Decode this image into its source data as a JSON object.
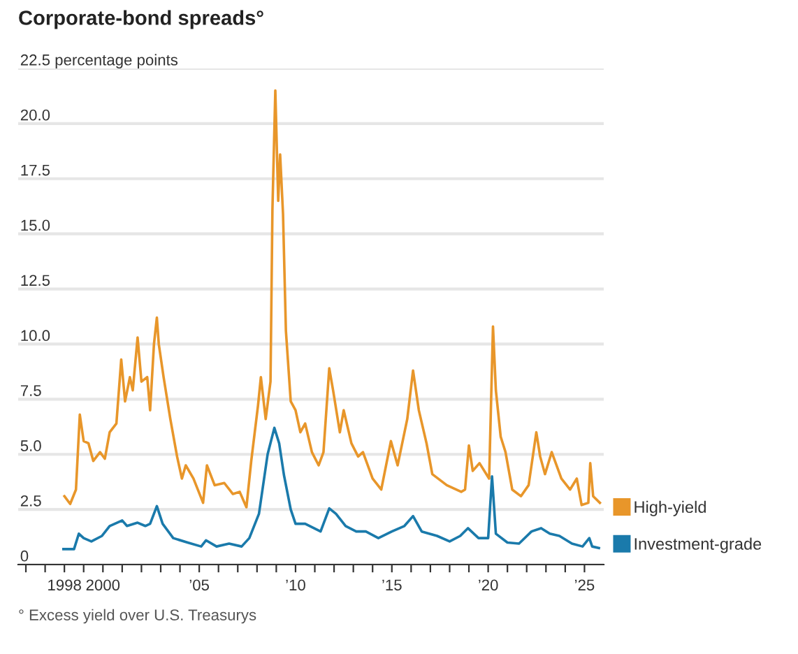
{
  "chart_data": {
    "type": "line",
    "title": "Corporate-bond spreads°",
    "annotations": [
      "° Excess yield over U.S. Treasurys"
    ],
    "series": [
      {
        "name": "High-yield",
        "color": "#e8962a",
        "x": [
          1998.0,
          1998.3,
          1998.6,
          1998.8,
          1999.0,
          1999.25,
          1999.5,
          1999.85,
          2000.1,
          2000.35,
          2000.7,
          2000.95,
          2001.15,
          2001.4,
          2001.55,
          2001.8,
          2002.0,
          2002.3,
          2002.45,
          2002.65,
          2002.8,
          2002.9,
          2003.15,
          2003.5,
          2003.85,
          2004.1,
          2004.3,
          2004.7,
          2005.2,
          2005.4,
          2005.8,
          2006.3,
          2006.75,
          2007.1,
          2007.45,
          2007.7,
          2008.05,
          2008.2,
          2008.45,
          2008.7,
          2008.8,
          2008.95,
          2009.1,
          2009.2,
          2009.35,
          2009.5,
          2009.75,
          2010.0,
          2010.25,
          2010.5,
          2010.85,
          2011.2,
          2011.45,
          2011.75,
          2011.95,
          2012.3,
          2012.5,
          2012.9,
          2013.25,
          2013.5,
          2014.0,
          2014.45,
          2014.95,
          2015.3,
          2015.8,
          2016.1,
          2016.4,
          2016.8,
          2017.1,
          2017.85,
          2018.6,
          2018.8,
          2019.0,
          2019.2,
          2019.55,
          2020.05,
          2020.25,
          2020.4,
          2020.65,
          2020.9,
          2021.25,
          2021.7,
          2022.1,
          2022.5,
          2022.7,
          2022.95,
          2023.3,
          2023.8,
          2024.25,
          2024.6,
          2024.85,
          2025.2,
          2025.3,
          2025.45,
          2025.8
        ],
        "values": [
          3.1,
          2.75,
          3.4,
          6.8,
          5.6,
          5.5,
          4.7,
          5.1,
          4.8,
          6.0,
          6.4,
          9.3,
          7.4,
          8.5,
          7.9,
          10.3,
          8.3,
          8.5,
          7.0,
          10.0,
          11.2,
          10.0,
          8.5,
          6.6,
          4.9,
          3.9,
          4.5,
          3.9,
          2.8,
          4.5,
          3.6,
          3.7,
          3.2,
          3.3,
          2.6,
          4.7,
          7.2,
          8.5,
          6.6,
          8.3,
          16.1,
          21.5,
          16.5,
          18.6,
          15.9,
          10.6,
          7.4,
          7.0,
          6.0,
          6.4,
          5.1,
          4.5,
          5.1,
          8.9,
          7.9,
          6.0,
          7.0,
          5.5,
          4.9,
          5.1,
          3.9,
          3.4,
          5.6,
          4.5,
          6.6,
          8.8,
          7.0,
          5.5,
          4.1,
          3.6,
          3.3,
          3.4,
          5.4,
          4.25,
          4.6,
          3.9,
          10.8,
          7.9,
          5.8,
          5.1,
          3.4,
          3.1,
          3.6,
          6.0,
          4.9,
          4.1,
          5.1,
          3.9,
          3.4,
          3.9,
          2.7,
          2.8,
          4.6,
          3.1,
          2.8
        ]
      },
      {
        "name": "Investment-grade",
        "color": "#1a7aab",
        "x": [
          1997.95,
          1998.5,
          1998.75,
          1999.0,
          1999.4,
          1999.95,
          2000.35,
          2001.0,
          2001.25,
          2001.8,
          2002.2,
          2002.45,
          2002.8,
          2003.1,
          2003.65,
          2004.4,
          2005.1,
          2005.35,
          2005.9,
          2006.55,
          2007.2,
          2007.6,
          2008.1,
          2008.55,
          2008.9,
          2009.15,
          2009.4,
          2009.75,
          2010.0,
          2010.5,
          2011.3,
          2011.75,
          2012.1,
          2012.6,
          2013.15,
          2013.65,
          2014.3,
          2015.0,
          2015.65,
          2016.1,
          2016.55,
          2017.35,
          2018.0,
          2018.55,
          2018.95,
          2019.5,
          2020.0,
          2020.2,
          2020.4,
          2021.0,
          2021.6,
          2022.25,
          2022.75,
          2023.2,
          2023.7,
          2024.35,
          2024.9,
          2025.25,
          2025.4,
          2025.75
        ],
        "values": [
          0.7,
          0.7,
          1.4,
          1.2,
          1.05,
          1.3,
          1.75,
          2.0,
          1.75,
          1.9,
          1.75,
          1.85,
          2.65,
          1.85,
          1.2,
          1.0,
          0.82,
          1.1,
          0.82,
          0.95,
          0.82,
          1.2,
          2.3,
          5.0,
          6.2,
          5.5,
          4.05,
          2.5,
          1.85,
          1.85,
          1.5,
          2.55,
          2.3,
          1.75,
          1.5,
          1.5,
          1.2,
          1.5,
          1.75,
          2.2,
          1.5,
          1.3,
          1.05,
          1.3,
          1.65,
          1.2,
          1.2,
          4.0,
          1.4,
          1.0,
          0.95,
          1.5,
          1.65,
          1.4,
          1.3,
          0.95,
          0.82,
          1.2,
          0.82,
          0.75
        ]
      }
    ],
    "xlim": [
      1995.6,
      2026.0
    ],
    "xticks": [
      {
        "value": 1996,
        "label": null
      },
      {
        "value": 1997,
        "label": null
      },
      {
        "value": 1998,
        "label": "1998"
      },
      {
        "value": 1999,
        "label": null
      },
      {
        "value": 2000,
        "label": "2000"
      },
      {
        "value": 2001,
        "label": null
      },
      {
        "value": 2002,
        "label": null
      },
      {
        "value": 2003,
        "label": null
      },
      {
        "value": 2004,
        "label": null
      },
      {
        "value": 2005,
        "label": "’05"
      },
      {
        "value": 2006,
        "label": null
      },
      {
        "value": 2007,
        "label": null
      },
      {
        "value": 2008,
        "label": null
      },
      {
        "value": 2009,
        "label": null
      },
      {
        "value": 2010,
        "label": "’10"
      },
      {
        "value": 2011,
        "label": null
      },
      {
        "value": 2012,
        "label": null
      },
      {
        "value": 2013,
        "label": null
      },
      {
        "value": 2014,
        "label": null
      },
      {
        "value": 2015,
        "label": "’15"
      },
      {
        "value": 2016,
        "label": null
      },
      {
        "value": 2017,
        "label": null
      },
      {
        "value": 2018,
        "label": null
      },
      {
        "value": 2019,
        "label": null
      },
      {
        "value": 2020,
        "label": "’20"
      },
      {
        "value": 2021,
        "label": null
      },
      {
        "value": 2022,
        "label": null
      },
      {
        "value": 2023,
        "label": null
      },
      {
        "value": 2024,
        "label": null
      },
      {
        "value": 2025,
        "label": "’25"
      }
    ],
    "ylim": [
      0,
      22.5
    ],
    "yticks": [
      0,
      2.5,
      {
        "value": 5,
        "label": "5.0"
      },
      7.5,
      {
        "value": 10,
        "label": "10.0"
      },
      12.5,
      {
        "value": 15,
        "label": "15.0"
      },
      17.5,
      {
        "value": 20,
        "label": "20.0"
      },
      {
        "value": 22.5,
        "label": "22.5 percentage points"
      }
    ],
    "grid": "y",
    "legend": "right",
    "marker": "none",
    "line_style": "solid"
  }
}
